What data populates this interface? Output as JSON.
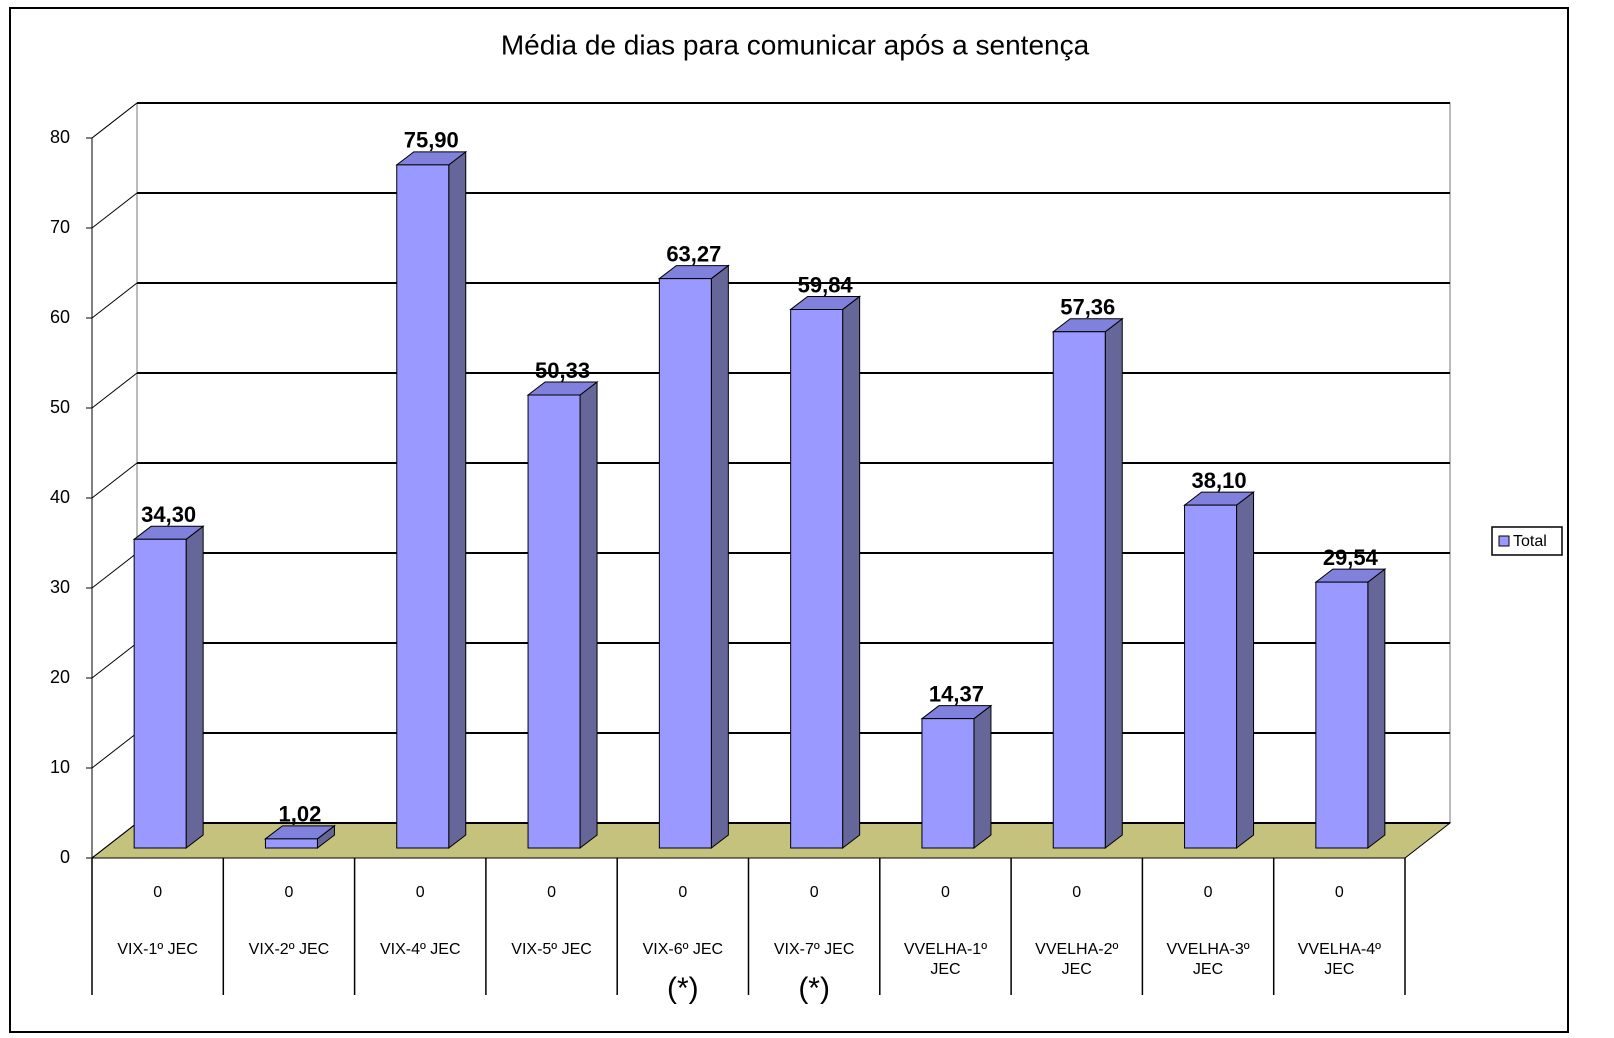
{
  "chart_data": {
    "type": "bar3d",
    "title": "Média de dias para comunicar após a sentença",
    "categories": [
      "VIX-1º JEC",
      "VIX-2º JEC",
      "VIX-4º JEC",
      "VIX-5º JEC",
      "VIX-6º JEC",
      "VIX-7º JEC",
      "VVELHA-1º JEC",
      "VVELHA-2º JEC",
      "VVELHA-3º JEC",
      "VVELHA-4º JEC"
    ],
    "category_groups": [
      "0",
      "0",
      "0",
      "0",
      "0",
      "0",
      "0",
      "0",
      "0",
      "0"
    ],
    "category_notes": [
      null,
      null,
      null,
      null,
      "(*)",
      "(*)",
      null,
      null,
      null,
      null
    ],
    "series": [
      {
        "name": "Total",
        "color": "#9999ff",
        "values": [
          34.3,
          1.02,
          75.9,
          50.33,
          63.27,
          59.84,
          14.37,
          57.36,
          38.1,
          29.54
        ],
        "value_labels": [
          "34,30",
          "1,02",
          "75,90",
          "50,33",
          "63,27",
          "59,84",
          "14,37",
          "57,36",
          "38,10",
          "29,54"
        ]
      }
    ],
    "ylim": [
      0,
      80
    ],
    "yticks": [
      0,
      10,
      20,
      30,
      40,
      50,
      60,
      70,
      80
    ],
    "grid": true,
    "floor_color": "#c4c27c",
    "legend": "right"
  }
}
